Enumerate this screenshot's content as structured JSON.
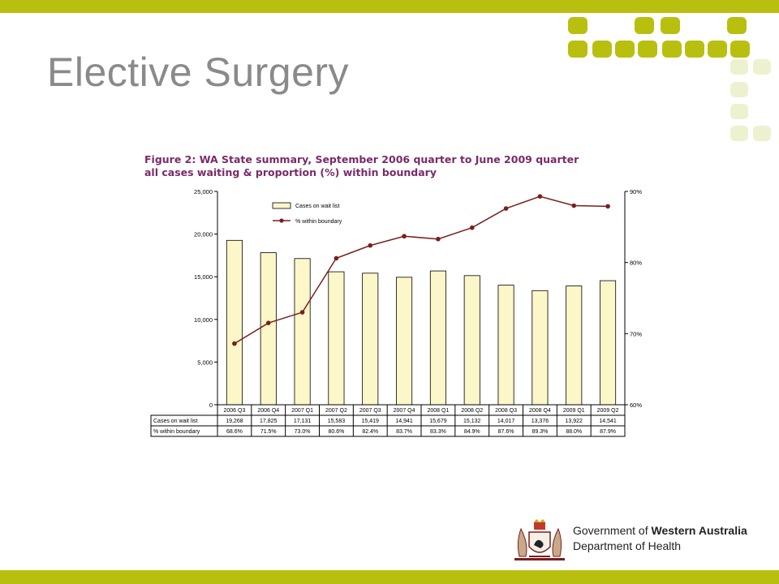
{
  "slide": {
    "title": "Elective Surgery",
    "brand_color": "#b9bf0f"
  },
  "footer": {
    "gov_prefix": "Government of ",
    "gov_name": "Western Australia",
    "department": "Department of Health"
  },
  "chart_data": {
    "type": "bar",
    "title_line1": "Figure 2: WA State summary, September 2006 quarter to June 2009 quarter",
    "title_line2": "all cases waiting & proportion (%) within boundary",
    "categories": [
      "2006 Q3",
      "2006 Q4",
      "2007 Q1",
      "2007 Q2",
      "2007 Q3",
      "2007 Q4",
      "2008 Q1",
      "2008 Q2",
      "2008 Q3",
      "2008 Q4",
      "2009 Q1",
      "2009 Q2"
    ],
    "series": [
      {
        "name": "Cases on wait list",
        "type": "bar",
        "axis": "left",
        "color": "#fbf7c8",
        "values": [
          19268,
          17825,
          17131,
          15583,
          15419,
          14941,
          15679,
          15132,
          14017,
          13376,
          13922,
          14541
        ],
        "labels": [
          "19,268",
          "17,825",
          "17,131",
          "15,583",
          "15,419",
          "14,941",
          "15,679",
          "15,132",
          "14,017",
          "13,376",
          "13,922",
          "14,541"
        ]
      },
      {
        "name": "% within boundary",
        "type": "line",
        "axis": "right",
        "color": "#7a1e1e",
        "values": [
          68.6,
          71.5,
          73.0,
          80.6,
          82.4,
          83.7,
          83.3,
          84.9,
          87.6,
          89.3,
          88.0,
          87.9
        ],
        "labels": [
          "68.6%",
          "71.5%",
          "73.0%",
          "80.6%",
          "82.4%",
          "83.7%",
          "83.3%",
          "84.9%",
          "87.6%",
          "89.3%",
          "88.0%",
          "87.9%"
        ]
      }
    ],
    "y_left": {
      "ylim": [
        0,
        25000
      ],
      "ticks": [
        "0",
        "5,000",
        "10,000",
        "15,000",
        "20,000",
        "25,000"
      ],
      "tick_values": [
        0,
        5000,
        10000,
        15000,
        20000,
        25000
      ]
    },
    "y_right": {
      "ylim": [
        60,
        90
      ],
      "ticks": [
        "60%",
        "70%",
        "80%",
        "90%"
      ],
      "tick_values": [
        60,
        70,
        80,
        90
      ]
    },
    "legend_position": "top-left",
    "grid": false
  }
}
